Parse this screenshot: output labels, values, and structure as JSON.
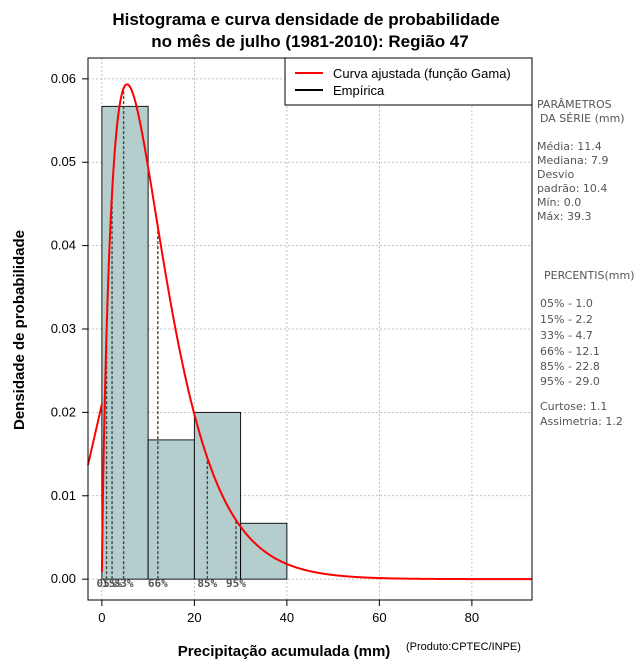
{
  "chart_data": {
    "type": "bar",
    "title_line1": "Histograma e curva densidade de probabilidade",
    "title_line2": "no mês de julho (1981-2010): Região 47",
    "xlabel": "Precipitação acumulada (mm)",
    "ylabel": "Densidade de probabilidade",
    "credit": "(Produto:CPTEC/INPE)",
    "xlim": [
      -3,
      93
    ],
    "ylim": [
      -0.0025,
      0.0625
    ],
    "x_ticks": [
      0,
      20,
      40,
      60,
      80
    ],
    "y_ticks": [
      0.0,
      0.01,
      0.02,
      0.03,
      0.04,
      0.05,
      0.06
    ],
    "y_tick_labels": [
      "0.00",
      "0.01",
      "0.02",
      "0.03",
      "0.04",
      "0.05",
      "0.06"
    ],
    "grid": true,
    "bins": [
      {
        "x0": 0,
        "x1": 10,
        "density": 0.0567
      },
      {
        "x0": 10,
        "x1": 20,
        "density": 0.0167
      },
      {
        "x0": 20,
        "x1": 30,
        "density": 0.02
      },
      {
        "x0": 30,
        "x1": 40,
        "density": 0.0067
      }
    ],
    "gamma_fit": {
      "shape": 1.8,
      "scale": 6.8,
      "color": "#ff0000"
    },
    "bar_color": "#b4cdcd",
    "percentiles": [
      {
        "label": "05%",
        "value": 1.0
      },
      {
        "label": "15%",
        "value": 2.2
      },
      {
        "label": "33%",
        "value": 4.7
      },
      {
        "label": "66%",
        "value": 12.1
      },
      {
        "label": "85%",
        "value": 22.8
      },
      {
        "label": "95%",
        "value": 29.0
      }
    ],
    "legend": {
      "position": "top-right",
      "entries": [
        {
          "label": "Curva ajustada (função Gama)",
          "color": "#ff0000"
        },
        {
          "label": "Empírica",
          "color": "#000000"
        }
      ]
    }
  },
  "side_panel": {
    "params_header_1": "PARÂMETROS",
    "params_header_2": "DA SÉRIE (mm)",
    "media": "Média:  11.4",
    "mediana": "Mediana:  7.9",
    "desvio_1": "Desvio",
    "desvio_2": "padrão:  10.4",
    "min": "Mín:  0.0",
    "max": "Máx:  39.3",
    "pct_header": "PERCENTIS(mm)",
    "pct_rows": [
      "05% -  1.0",
      "15% -  2.2",
      "33% -  4.7",
      "66% -  12.1",
      "85% -  22.8",
      "95% -  29.0"
    ],
    "curtose": "Curtose:  1.1",
    "assimetria": "Assimetria:  1.2"
  }
}
